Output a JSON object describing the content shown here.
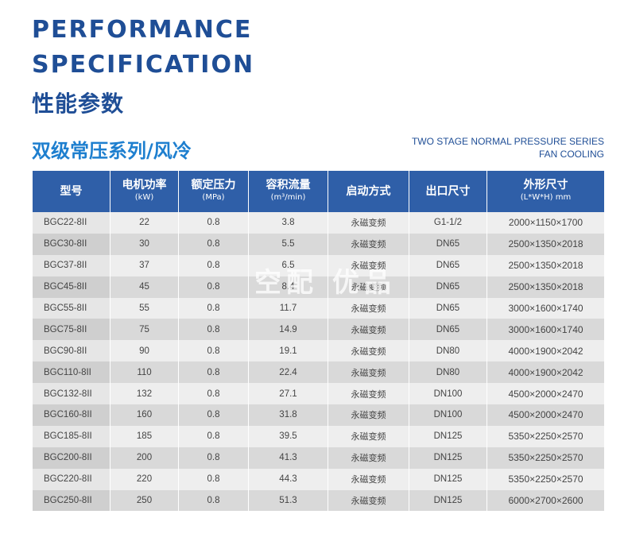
{
  "heading": {
    "line1": "PERFORMANCE",
    "line2": "SPECIFICATION",
    "cn": "性能参数"
  },
  "series": {
    "cn": "双级常压系列/风冷",
    "en_line1": "TWO STAGE NORMAL PRESSURE SERIES",
    "en_line2": "FAN COOLING"
  },
  "watermark": "空配 优品",
  "table": {
    "headers": [
      {
        "label": "型号",
        "unit": ""
      },
      {
        "label": "电机功率",
        "unit": "(kW)"
      },
      {
        "label": "额定压力",
        "unit": "(MPa)"
      },
      {
        "label": "容积流量",
        "unit": "(m³/min)"
      },
      {
        "label": "启动方式",
        "unit": ""
      },
      {
        "label": "出口尺寸",
        "unit": ""
      },
      {
        "label": "外形尺寸",
        "unit": "(L*W*H) mm"
      }
    ],
    "rows": [
      [
        "BGC22-8II",
        "22",
        "0.8",
        "3.8",
        "永磁变频",
        "G1-1/2",
        "2000×1150×1700"
      ],
      [
        "BGC30-8II",
        "30",
        "0.8",
        "5.5",
        "永磁变频",
        "DN65",
        "2500×1350×2018"
      ],
      [
        "BGC37-8II",
        "37",
        "0.8",
        "6.5",
        "永磁变频",
        "DN65",
        "2500×1350×2018"
      ],
      [
        "BGC45-8II",
        "45",
        "0.8",
        "8.4",
        "永磁变频",
        "DN65",
        "2500×1350×2018"
      ],
      [
        "BGC55-8II",
        "55",
        "0.8",
        "11.7",
        "永磁变频",
        "DN65",
        "3000×1600×1740"
      ],
      [
        "BGC75-8II",
        "75",
        "0.8",
        "14.9",
        "永磁变频",
        "DN65",
        "3000×1600×1740"
      ],
      [
        "BGC90-8II",
        "90",
        "0.8",
        "19.1",
        "永磁变频",
        "DN80",
        "4000×1900×2042"
      ],
      [
        "BGC110-8II",
        "110",
        "0.8",
        "22.4",
        "永磁变频",
        "DN80",
        "4000×1900×2042"
      ],
      [
        "BGC132-8II",
        "132",
        "0.8",
        "27.1",
        "永磁变频",
        "DN100",
        "4500×2000×2470"
      ],
      [
        "BGC160-8II",
        "160",
        "0.8",
        "31.8",
        "永磁变频",
        "DN100",
        "4500×2000×2470"
      ],
      [
        "BGC185-8II",
        "185",
        "0.8",
        "39.5",
        "永磁变频",
        "DN125",
        "5350×2250×2570"
      ],
      [
        "BGC200-8II",
        "200",
        "0.8",
        "41.3",
        "永磁变频",
        "DN125",
        "5350×2250×2570"
      ],
      [
        "BGC220-8II",
        "220",
        "0.8",
        "44.3",
        "永磁变频",
        "DN125",
        "5350×2250×2570"
      ],
      [
        "BGC250-8II",
        "250",
        "0.8",
        "51.3",
        "永磁变频",
        "DN125",
        "6000×2700×2600"
      ]
    ]
  },
  "colors": {
    "heading": "#1f4e96",
    "series_title": "#1e7fcf",
    "table_header_bg": "#2f5fa8",
    "row_light": "#eeeeee",
    "row_dark": "#d9d9d9"
  }
}
